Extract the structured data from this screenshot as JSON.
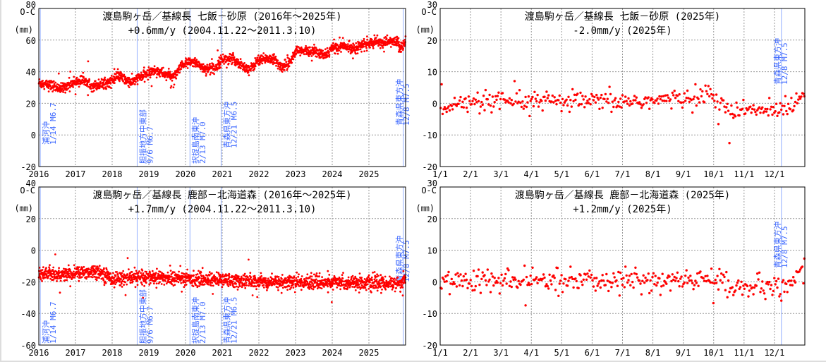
{
  "chart_data": [
    {
      "type": "scatter",
      "title": "渡島駒ヶ岳／基線長 七飯－砂原 (2016年～2025年)",
      "subtitle": "+0.6mm/y (2004.11.22～2011.3.10)",
      "ylabel": "O-C",
      "yunit": "(㎜)",
      "xlim": [
        2016,
        2026
      ],
      "ylim": [
        -20,
        80
      ],
      "yticks": [
        80,
        60,
        40,
        20,
        0,
        -20
      ],
      "xticks": [
        2016,
        2017,
        2018,
        2019,
        2020,
        2021,
        2022,
        2023,
        2024,
        2025
      ],
      "xtick_labels": [
        "2016",
        "2017",
        "2018",
        "2019",
        "2020",
        "2021",
        "2022",
        "2023",
        "2024",
        "2025"
      ],
      "grid": true,
      "color": "#ff0000",
      "noise_mm": 1.6,
      "trend": [
        [
          2016.0,
          33
        ],
        [
          2016.4,
          31
        ],
        [
          2016.6,
          29
        ],
        [
          2016.9,
          33
        ],
        [
          2017.3,
          35
        ],
        [
          2017.45,
          31
        ],
        [
          2017.9,
          33
        ],
        [
          2018.2,
          37
        ],
        [
          2018.5,
          33
        ],
        [
          2018.8,
          37
        ],
        [
          2019.2,
          41
        ],
        [
          2019.45,
          38
        ],
        [
          2019.7,
          37
        ],
        [
          2019.95,
          45
        ],
        [
          2020.3,
          46
        ],
        [
          2020.5,
          42
        ],
        [
          2020.8,
          42
        ],
        [
          2021.0,
          48
        ],
        [
          2021.3,
          48
        ],
        [
          2021.6,
          43
        ],
        [
          2021.75,
          41
        ],
        [
          2022.0,
          48
        ],
        [
          2022.4,
          48
        ],
        [
          2022.6,
          43
        ],
        [
          2022.8,
          45
        ],
        [
          2023.0,
          53
        ],
        [
          2023.5,
          53
        ],
        [
          2023.8,
          50
        ],
        [
          2024.0,
          55
        ],
        [
          2024.3,
          56
        ],
        [
          2024.6,
          55
        ],
        [
          2025.0,
          58
        ],
        [
          2025.5,
          59
        ],
        [
          2025.8,
          59
        ],
        [
          2025.85,
          55
        ],
        [
          2025.97,
          57
        ],
        [
          2026.0,
          61
        ]
      ],
      "events": [
        {
          "x": 2016.04,
          "name": "浦河沖",
          "detail": "1/14 M6.7"
        },
        {
          "x": 2018.68,
          "name": "胆振地方中東部",
          "detail": "9/6 M6.7"
        },
        {
          "x": 2020.12,
          "name": "択捉島南東沖",
          "detail": "2/13 M7.0"
        },
        {
          "x": 2020.97,
          "name": "青森県東方沖",
          "detail": "12/21 M6.5"
        },
        {
          "x": 2025.94,
          "name": "青森県東方沖",
          "detail": "12/8 M7.5"
        }
      ]
    },
    {
      "type": "scatter",
      "title": "渡島駒ヶ岳／基線長 七飯－砂原 (2025年)",
      "subtitle": "-2.0mm/y  (2025年)",
      "ylabel": "O-C",
      "yunit": "(㎜)",
      "xlim": [
        0,
        12
      ],
      "ylim": [
        -20,
        30
      ],
      "yticks": [
        30,
        20,
        10,
        0,
        -10,
        -20
      ],
      "xticks": [
        0,
        1,
        2,
        3,
        4,
        5,
        6,
        7,
        8,
        9,
        10,
        11
      ],
      "xtick_labels": [
        "1/1",
        "2/1",
        "3/1",
        "4/1",
        "5/1",
        "6/1",
        "7/1",
        "8/1",
        "9/1",
        "10/1",
        "11/1",
        "12/1"
      ],
      "grid": true,
      "color": "#ff0000",
      "noise_mm": 1.5,
      "trend": [
        [
          0,
          -1
        ],
        [
          1,
          0
        ],
        [
          3,
          0.5
        ],
        [
          5,
          0.5
        ],
        [
          6,
          0.5
        ],
        [
          7.5,
          1
        ],
        [
          8,
          1.5
        ],
        [
          8.8,
          3
        ],
        [
          9.2,
          1
        ],
        [
          9.5,
          -3
        ],
        [
          10,
          -2.5
        ],
        [
          11,
          -2
        ],
        [
          11.3,
          -1
        ],
        [
          11.6,
          -1
        ],
        [
          11.75,
          2
        ],
        [
          12,
          3.5
        ]
      ],
      "events": [
        {
          "x": 11.23,
          "name": "青森県東方沖",
          "detail": "12/8 M7.5"
        }
      ]
    },
    {
      "type": "scatter",
      "title": "渡島駒ヶ岳／基線長 鹿部－北海道森 (2016年～2025年)",
      "subtitle": "+1.7mm/y (2004.11.22～2011.3.10)",
      "ylabel": "O-C",
      "yunit": "(㎜)",
      "xlim": [
        2016,
        2026
      ],
      "ylim": [
        -60,
        40
      ],
      "yticks": [
        40,
        20,
        0,
        -20,
        -40,
        -60
      ],
      "xticks": [
        2016,
        2017,
        2018,
        2019,
        2020,
        2021,
        2022,
        2023,
        2024,
        2025
      ],
      "xtick_labels": [
        "2016",
        "2017",
        "2018",
        "2019",
        "2020",
        "2021",
        "2022",
        "2023",
        "2024",
        "2025"
      ],
      "grid": true,
      "color": "#ff0000",
      "noise_mm": 2.2,
      "trend": [
        [
          2016.0,
          -14
        ],
        [
          2016.5,
          -16
        ],
        [
          2017.6,
          -13
        ],
        [
          2018.0,
          -18
        ],
        [
          2019.0,
          -17
        ],
        [
          2020.0,
          -18
        ],
        [
          2021.0,
          -19
        ],
        [
          2022.0,
          -20
        ],
        [
          2025.9,
          -21
        ],
        [
          2026.0,
          -17
        ]
      ],
      "events": [
        {
          "x": 2016.04,
          "name": "浦河沖",
          "detail": "1/14 M6.7"
        },
        {
          "x": 2018.68,
          "name": "胆振地方中東部",
          "detail": "9/6 M6.7"
        },
        {
          "x": 2020.12,
          "name": "択捉島南東沖",
          "detail": "2/13 M7.0"
        },
        {
          "x": 2020.97,
          "name": "青森県東方沖",
          "detail": "12/21 M6.5"
        },
        {
          "x": 2025.94,
          "name": "青森県東方沖",
          "detail": "12/8 M7.5"
        }
      ]
    },
    {
      "type": "scatter",
      "title": "渡島駒ヶ岳／基線長 鹿部－北海道森 (2025年)",
      "subtitle": "+1.2mm/y  (2025年)",
      "ylabel": "O-C",
      "yunit": "(㎜)",
      "xlim": [
        0,
        12
      ],
      "ylim": [
        -20,
        30
      ],
      "yticks": [
        30,
        20,
        10,
        0,
        -10,
        -20
      ],
      "xticks": [
        0,
        1,
        2,
        3,
        4,
        5,
        6,
        7,
        8,
        9,
        10,
        11
      ],
      "xtick_labels": [
        "1/1",
        "2/1",
        "3/1",
        "4/1",
        "5/1",
        "6/1",
        "7/1",
        "8/1",
        "9/1",
        "10/1",
        "11/1",
        "12/1"
      ],
      "grid": true,
      "color": "#ff0000",
      "noise_mm": 1.8,
      "trend": [
        [
          0,
          0.5
        ],
        [
          3,
          0
        ],
        [
          6,
          0.5
        ],
        [
          8.5,
          0.5
        ],
        [
          9.2,
          0.5
        ],
        [
          9.6,
          -1
        ],
        [
          10,
          -2
        ],
        [
          11,
          -2
        ],
        [
          11.3,
          -1.5
        ],
        [
          11.6,
          -1.5
        ],
        [
          11.75,
          2
        ],
        [
          12,
          4
        ]
      ],
      "events": [
        {
          "x": 11.23,
          "name": "青森県東方沖",
          "detail": "12/8 M7.5"
        }
      ]
    }
  ]
}
